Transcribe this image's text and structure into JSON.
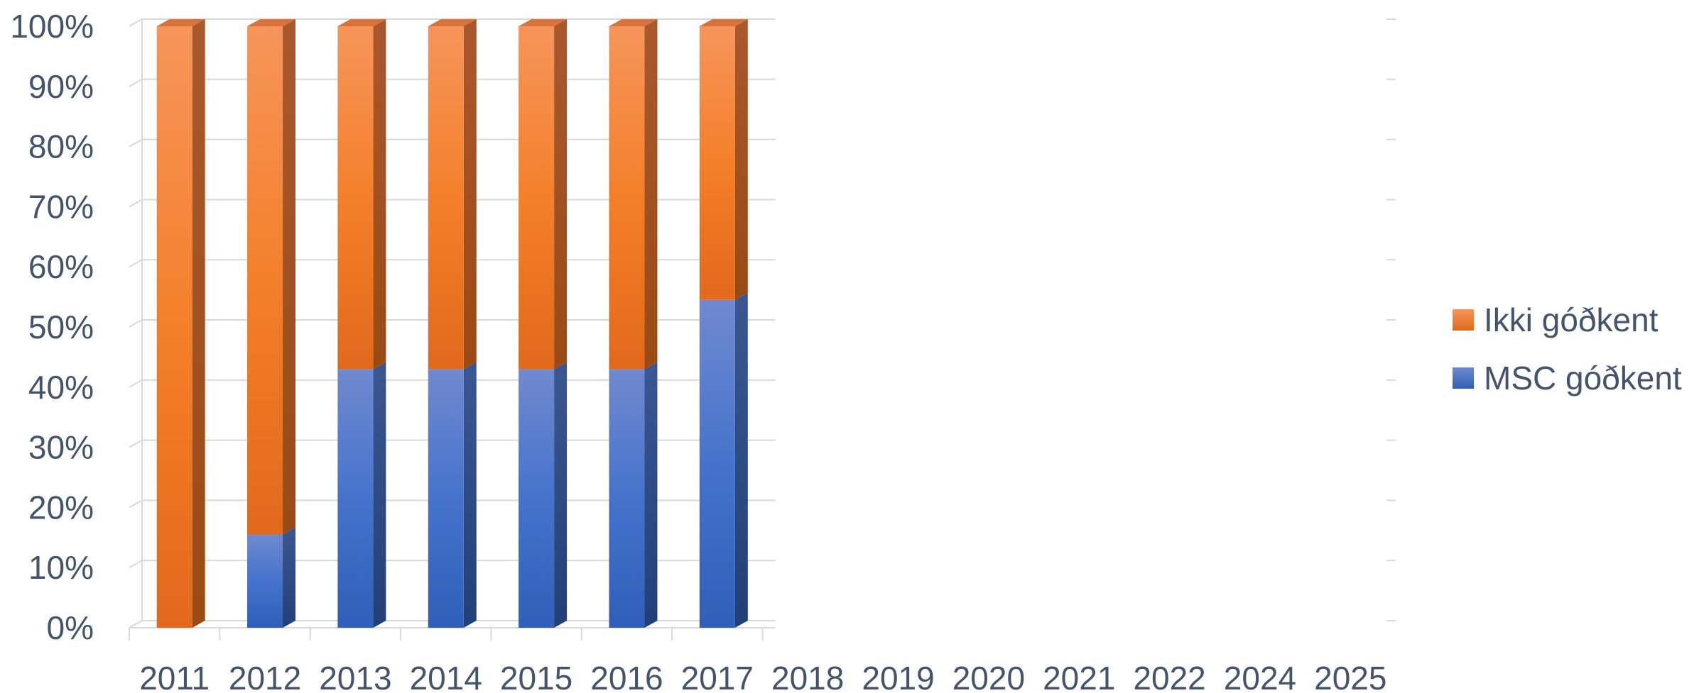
{
  "chart_data": {
    "type": "bar",
    "stacked": true,
    "percent": true,
    "categories": [
      "2011",
      "2012",
      "2013",
      "2014",
      "2015",
      "2016",
      "2017",
      "2018",
      "2019",
      "2020",
      "2021",
      "2022",
      "2024",
      "2025"
    ],
    "series": [
      {
        "name": "MSC góðkent",
        "color": "#4472c4",
        "values": [
          0,
          15.5,
          43,
          43,
          43,
          43,
          54.5,
          null,
          null,
          null,
          null,
          null,
          null,
          null
        ]
      },
      {
        "name": "Ikki góðkent",
        "color": "#ed7d31",
        "values": [
          100,
          84.5,
          57,
          57,
          57,
          57,
          45.5,
          null,
          null,
          null,
          null,
          null,
          null,
          null
        ]
      }
    ],
    "ylim": [
      0,
      100
    ],
    "yticks": [
      "0%",
      "10%",
      "20%",
      "30%",
      "40%",
      "50%",
      "60%",
      "70%",
      "80%",
      "90%",
      "100%"
    ],
    "grid": true,
    "legend_position": "right"
  },
  "legend": {
    "items": [
      {
        "label": "Ikki góðkent",
        "color": "#ed7d31"
      },
      {
        "label": "MSC góðkent",
        "color": "#4472c4"
      }
    ]
  }
}
